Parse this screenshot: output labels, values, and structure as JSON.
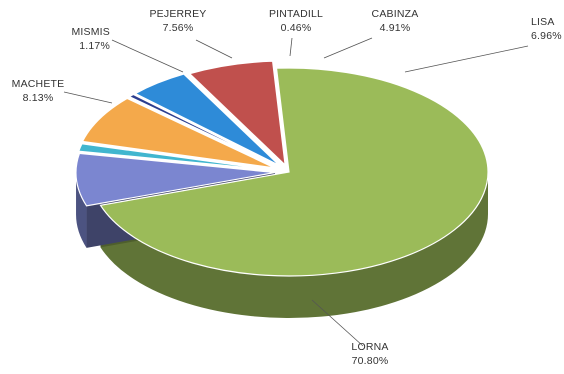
{
  "chart_data": {
    "type": "pie",
    "style": "3d-exploded",
    "title": "",
    "legend": "none",
    "slices": [
      {
        "name": "LORNA",
        "value": 70.8,
        "label": "70.80%",
        "color": "#9BBB59"
      },
      {
        "name": "MACHETE",
        "value": 8.13,
        "label": "8.13%",
        "color": "#7B86D0"
      },
      {
        "name": "MISMIS",
        "value": 1.17,
        "label": "1.17%",
        "color": "#41B6CF"
      },
      {
        "name": "PEJERREY",
        "value": 7.56,
        "label": "7.56%",
        "color": "#F4A94B"
      },
      {
        "name": "PINTADILL",
        "value": 0.46,
        "label": "0.46%",
        "color": "#2C3E8F"
      },
      {
        "name": "CABINZA",
        "value": 4.91,
        "label": "4.91%",
        "color": "#2E8BD8"
      },
      {
        "name": "LISA",
        "value": 6.96,
        "label": "6.96%",
        "color": "#C0504D"
      }
    ]
  }
}
